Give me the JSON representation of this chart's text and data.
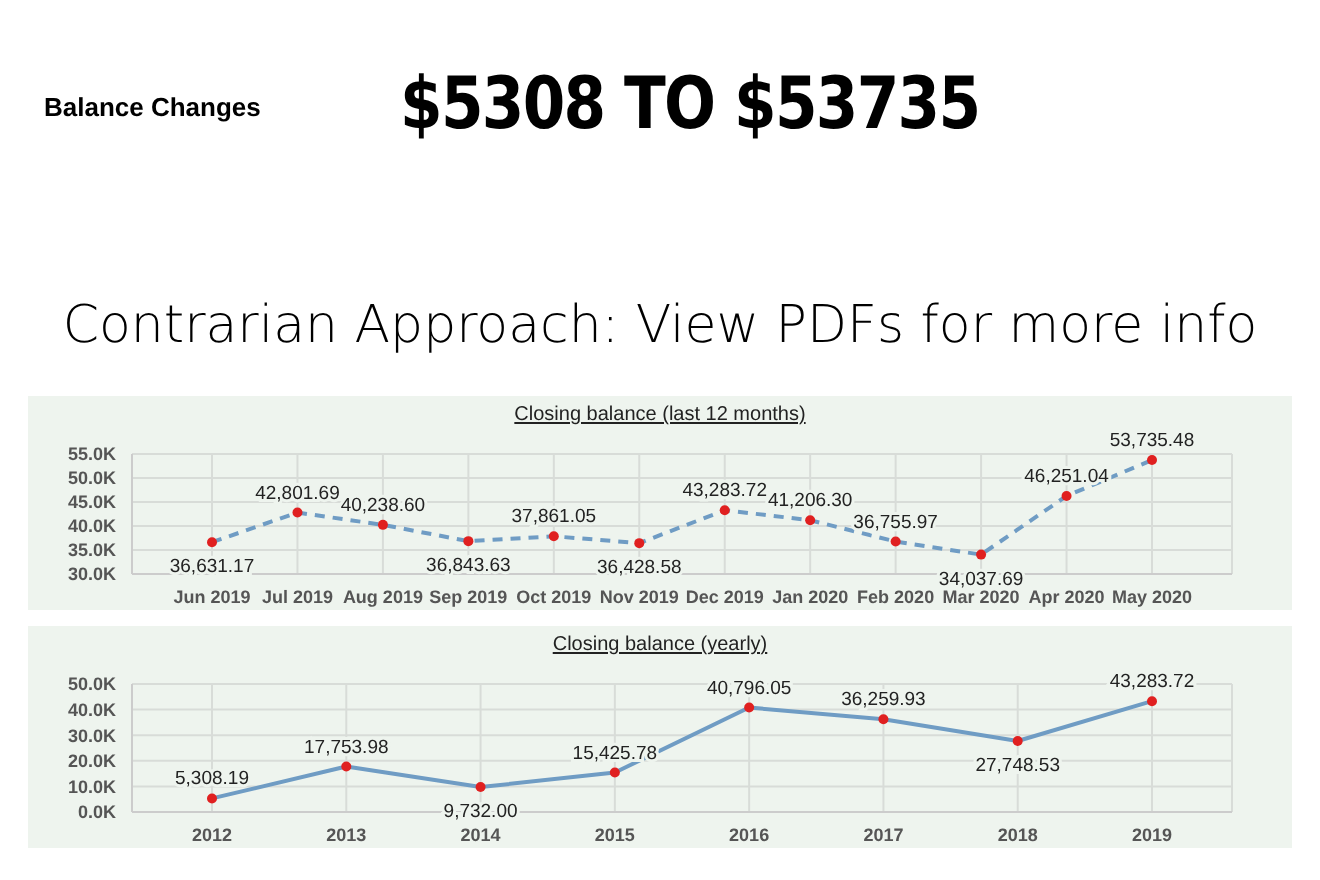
{
  "chart_data": [
    {
      "type": "other",
      "title": "$5308 TO $53735",
      "subtitle": "Contrarian Approach: View PDFs for more info",
      "annotations": [
        "Balance Changes"
      ]
    },
    {
      "type": "line",
      "title": "Closing balance (last 12 months)",
      "categories": [
        "Jun 2019",
        "Jul 2019",
        "Aug 2019",
        "Sep 2019",
        "Oct 2019",
        "Nov 2019",
        "Dec 2019",
        "Jan 2020",
        "Feb 2020",
        "Mar 2020",
        "Apr 2020",
        "May 2020"
      ],
      "series": [
        {
          "color": "#6f9cc4",
          "values": [
            36631.17,
            42801.69,
            40238.6,
            36843.63,
            37861.05,
            36428.58,
            43283.72,
            41206.3,
            36755.97,
            34037.69,
            46251.04,
            53735.48
          ],
          "colors": [
            "#e02020",
            "#e02020",
            "#e02020",
            "#e02020",
            "#e02020",
            "#e02020",
            "#e02020",
            "#e02020",
            "#e02020",
            "#e02020",
            "#e02020",
            "#e02020"
          ]
        }
      ],
      "ylim": [
        30000,
        55000
      ],
      "yticks": [
        {
          "value": 30000,
          "label": "30.0K"
        },
        {
          "value": 35000,
          "label": "35.0K"
        },
        {
          "value": 40000,
          "label": "40.0K"
        },
        {
          "value": 45000,
          "label": "45.0K"
        },
        {
          "value": 50000,
          "label": "50.0K"
        },
        {
          "value": 55000,
          "label": "55.0K"
        }
      ],
      "grid": true,
      "marker": "circle",
      "line_style": "dashed",
      "value_labels": [
        "36,631.17",
        "42,801.69",
        "40,238.60",
        "36,843.63",
        "37,861.05",
        "36,428.58",
        "43,283.72",
        "41,206.30",
        "36,755.97",
        "34,037.69",
        "46,251.04",
        "53,735.48"
      ]
    },
    {
      "type": "line",
      "title": "Closing balance (yearly)",
      "categories": [
        "2012",
        "2013",
        "2014",
        "2015",
        "2016",
        "2017",
        "2018",
        "2019"
      ],
      "series": [
        {
          "color": "#6f9cc4",
          "values": [
            5308.19,
            17753.98,
            9732.0,
            15425.78,
            40796.05,
            36259.93,
            27748.53,
            43283.72
          ],
          "colors": [
            "#e02020",
            "#e02020",
            "#e02020",
            "#e02020",
            "#e02020",
            "#e02020",
            "#e02020",
            "#e02020"
          ]
        }
      ],
      "ylim": [
        0,
        50000
      ],
      "yticks": [
        {
          "value": 0,
          "label": "0.0K"
        },
        {
          "value": 10000,
          "label": "10.0K"
        },
        {
          "value": 20000,
          "label": "20.0K"
        },
        {
          "value": 30000,
          "label": "30.0K"
        },
        {
          "value": 40000,
          "label": "40.0K"
        },
        {
          "value": 50000,
          "label": "50.0K"
        }
      ],
      "grid": true,
      "marker": "circle",
      "line_style": "solid",
      "value_labels": [
        "5,308.19",
        "17,753.98",
        "9,732.00",
        "15,425.78",
        "40,796.05",
        "36,259.93",
        "27,748.53",
        "43,283.72"
      ]
    }
  ]
}
